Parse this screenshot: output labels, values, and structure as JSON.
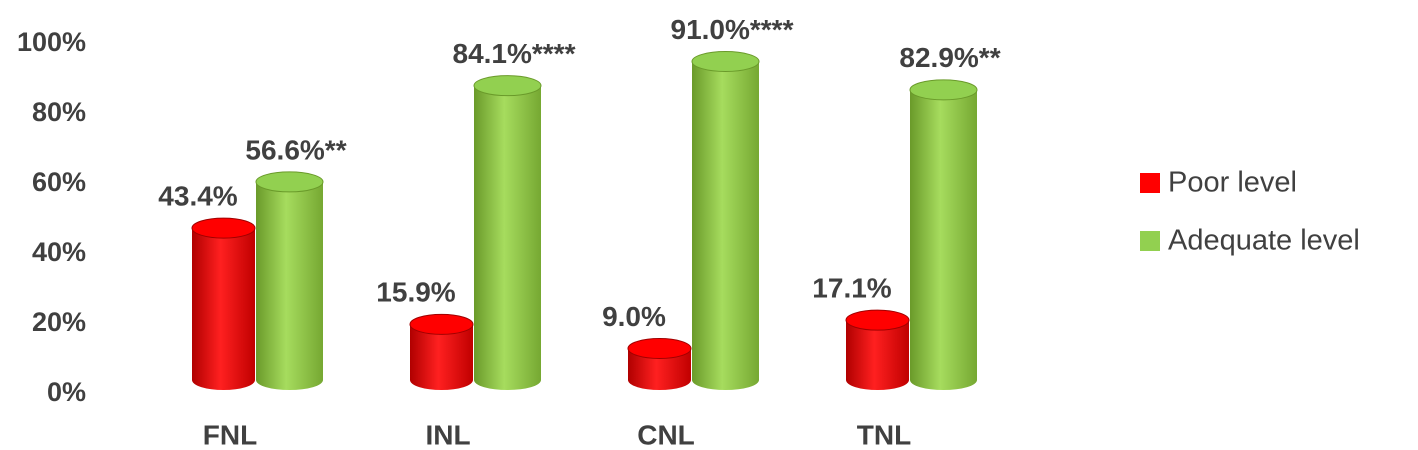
{
  "chart_data": {
    "type": "bar3d",
    "categories": [
      "FNL",
      "INL",
      "CNL",
      "TNL"
    ],
    "series": [
      {
        "name": "Poor level",
        "color": "#ff0000",
        "values": [
          43.4,
          15.9,
          9.0,
          17.1
        ],
        "value_labels": [
          "43.4%",
          "15.9%",
          "9.0%",
          "17.1%"
        ]
      },
      {
        "name": "Adequate level",
        "color": "#92d050",
        "values": [
          56.6,
          84.1,
          91.0,
          82.9
        ],
        "value_labels": [
          "56.6%**",
          "84.1%****",
          "91.0%****",
          "82.9%**"
        ]
      }
    ],
    "ylim": [
      0,
      100
    ],
    "yticks": [
      {
        "value": 0,
        "label": "0%"
      },
      {
        "value": 20,
        "label": "20%"
      },
      {
        "value": 40,
        "label": "40%"
      },
      {
        "value": 60,
        "label": "60%"
      },
      {
        "value": 80,
        "label": "80%"
      },
      {
        "value": 100,
        "label": "100%"
      }
    ],
    "legend": "right"
  }
}
